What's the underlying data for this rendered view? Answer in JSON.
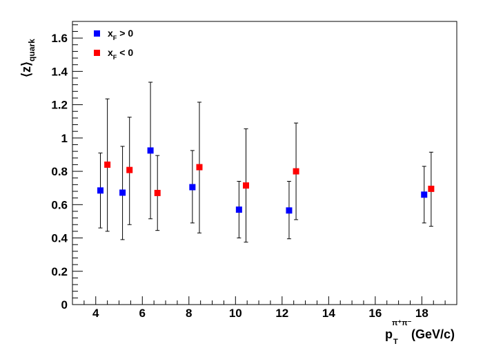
{
  "chart_data": {
    "type": "scatter",
    "ylabel": {
      "main": "z",
      "sub": "quark"
    },
    "xlabel": {
      "main": "p",
      "sub": "T",
      "sup": "π⁺π⁻",
      "unit": "(GeV/c)"
    },
    "xlim": [
      3,
      19.5
    ],
    "ylim": [
      0,
      1.7
    ],
    "x_ticks": [
      4,
      6,
      8,
      10,
      12,
      14,
      16,
      18
    ],
    "y_ticks": [
      "0",
      "0.2",
      "0.4",
      "0.6",
      "0.8",
      "1",
      "1.2",
      "1.4",
      "1.6"
    ],
    "legend_position": "top-left",
    "series": [
      {
        "name": "x_F > 0",
        "legend_main": "x",
        "legend_sub": "F",
        "legend_rest": "> 0",
        "color": "#0000ff",
        "points": [
          {
            "x": 4.2,
            "y": 0.685,
            "ylow": 0.46,
            "yhigh": 0.91
          },
          {
            "x": 5.15,
            "y": 0.672,
            "ylow": 0.39,
            "yhigh": 0.95
          },
          {
            "x": 6.35,
            "y": 0.925,
            "ylow": 0.515,
            "yhigh": 1.335
          },
          {
            "x": 8.15,
            "y": 0.705,
            "ylow": 0.49,
            "yhigh": 0.925
          },
          {
            "x": 10.15,
            "y": 0.57,
            "ylow": 0.4,
            "yhigh": 0.74
          },
          {
            "x": 12.3,
            "y": 0.565,
            "ylow": 0.395,
            "yhigh": 0.74
          },
          {
            "x": 18.1,
            "y": 0.66,
            "ylow": 0.49,
            "yhigh": 0.83
          }
        ]
      },
      {
        "name": "x_F < 0",
        "legend_main": "x",
        "legend_sub": "F",
        "legend_rest": "< 0",
        "color": "#ff0000",
        "points": [
          {
            "x": 4.5,
            "y": 0.84,
            "ylow": 0.44,
            "yhigh": 1.235
          },
          {
            "x": 5.45,
            "y": 0.808,
            "ylow": 0.48,
            "yhigh": 1.125
          },
          {
            "x": 6.65,
            "y": 0.67,
            "ylow": 0.445,
            "yhigh": 0.895
          },
          {
            "x": 8.45,
            "y": 0.825,
            "ylow": 0.43,
            "yhigh": 1.215
          },
          {
            "x": 10.45,
            "y": 0.715,
            "ylow": 0.375,
            "yhigh": 1.055
          },
          {
            "x": 12.6,
            "y": 0.8,
            "ylow": 0.51,
            "yhigh": 1.09
          },
          {
            "x": 18.4,
            "y": 0.695,
            "ylow": 0.47,
            "yhigh": 0.915
          }
        ]
      }
    ]
  }
}
